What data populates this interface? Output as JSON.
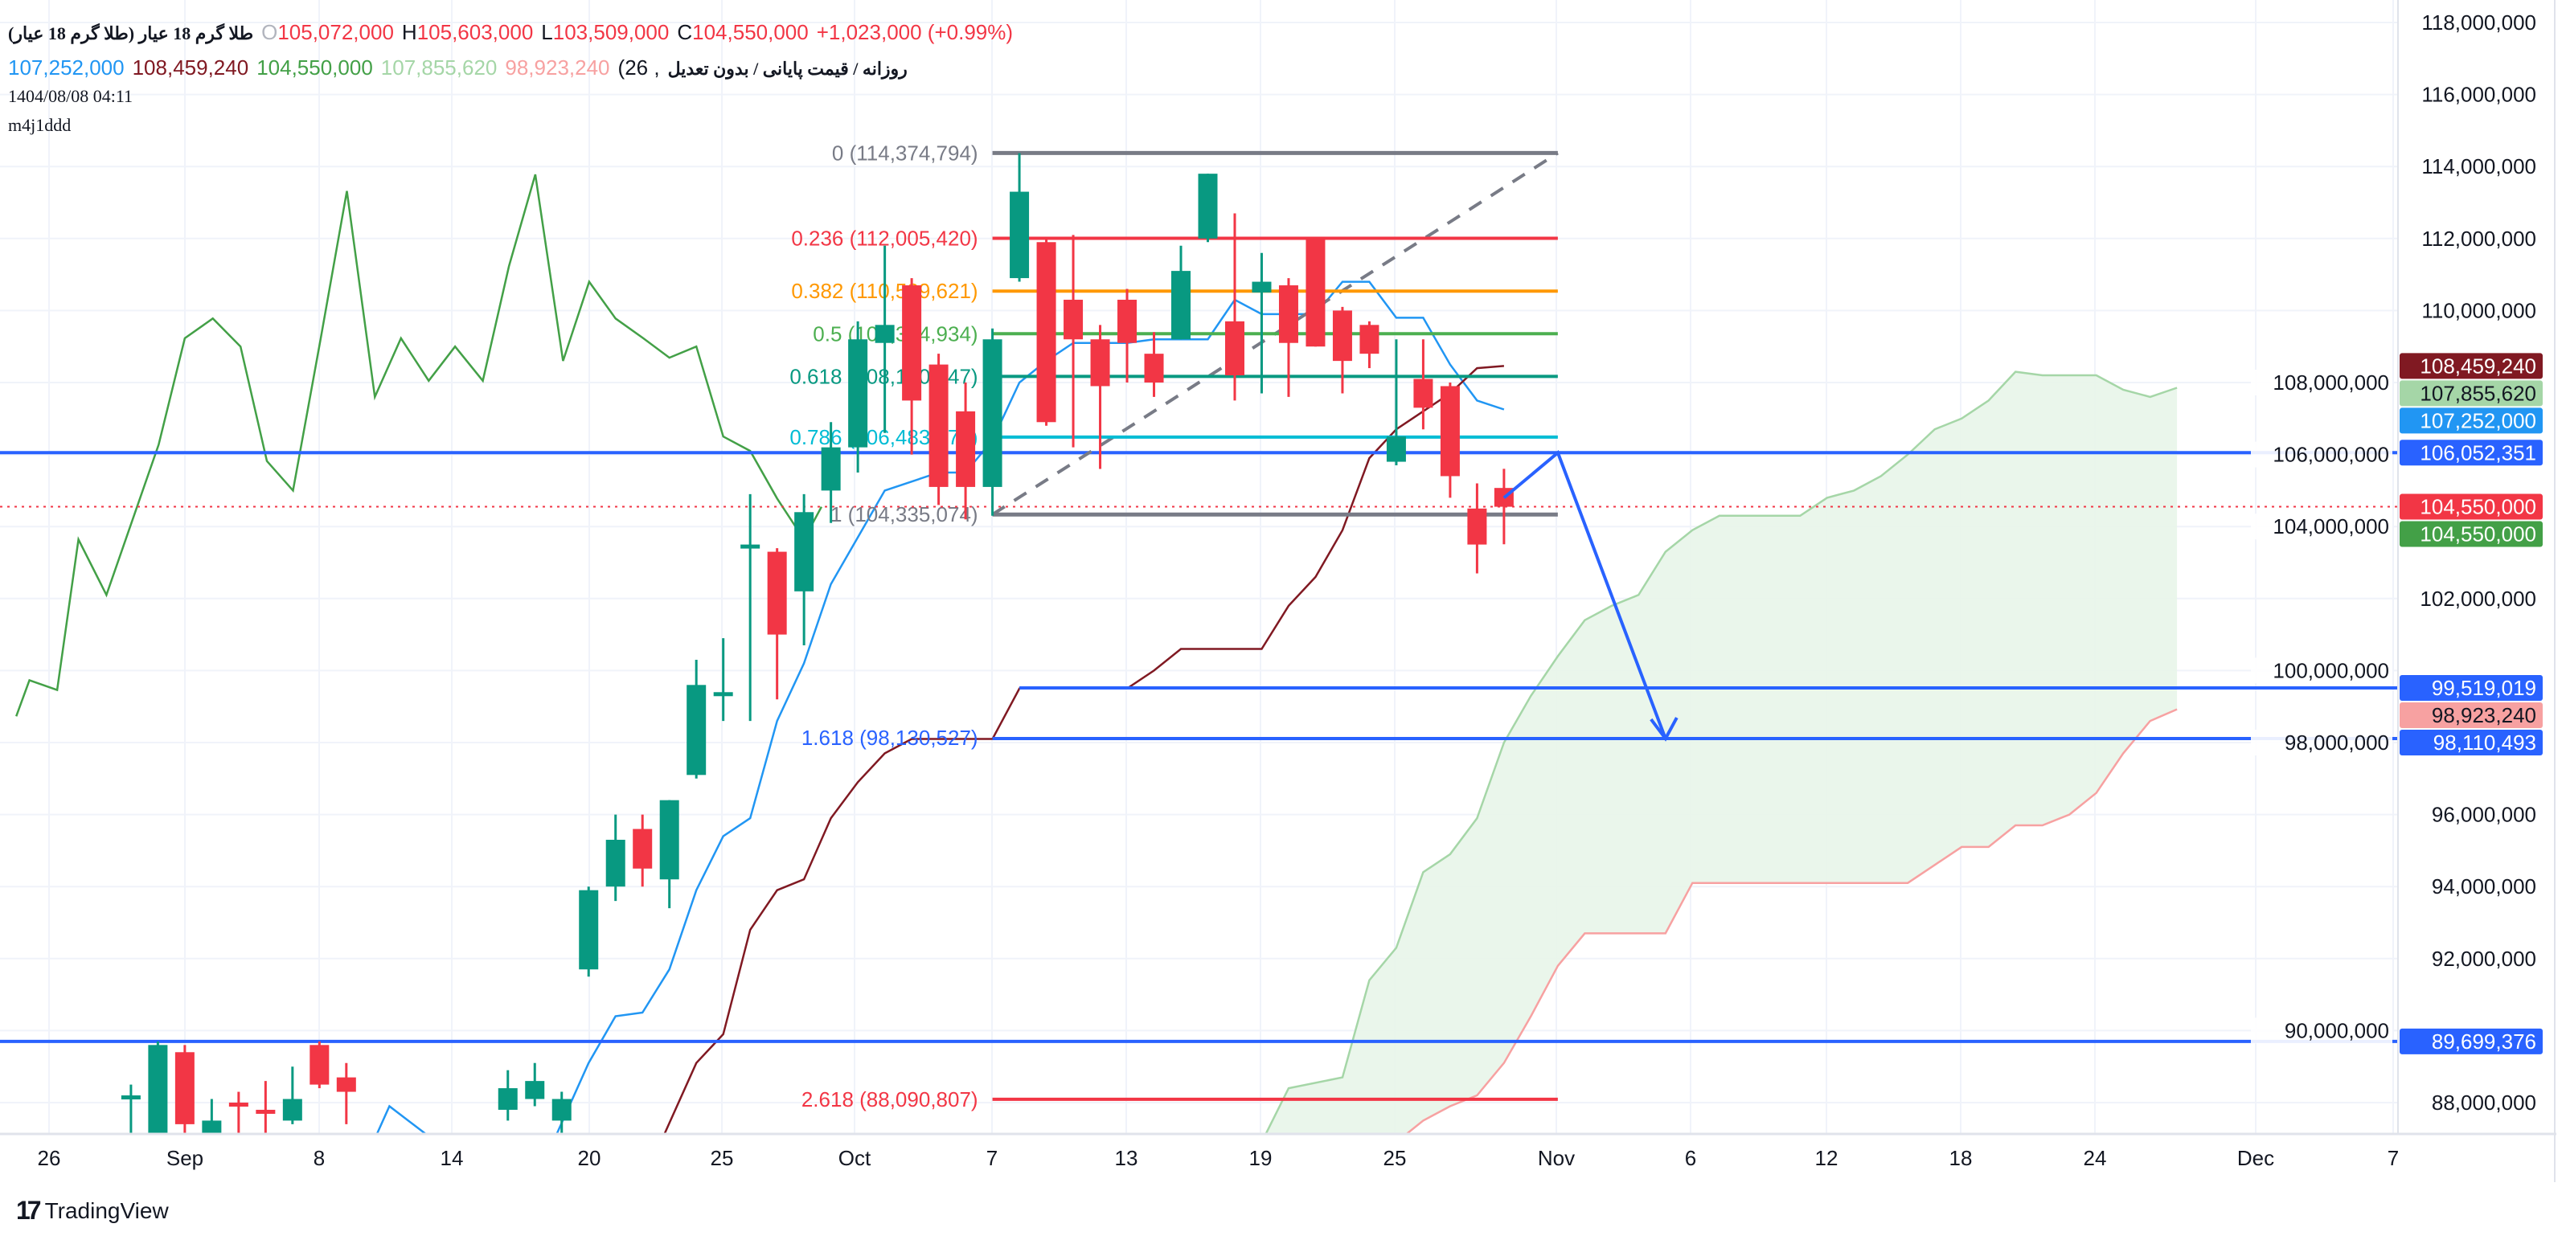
{
  "legend": {
    "symbol_title": "طلا گرم 18 عیار (طلا گرم 18 عیار)",
    "open_label": "O",
    "open": "105,072,000",
    "high_label": "H",
    "high": "105,603,000",
    "low_label": "L",
    "low": "103,509,000",
    "close_label": "C",
    "close": "104,550,000",
    "change": "+1,023,000 (+0.99%)",
    "indicator_title": "روزانه / قیمت پایانی / بدون تعدیل",
    "indicator_params_tail": ", 26)",
    "ind_values": [
      "107,252,000",
      "108,459,240",
      "104,550,000",
      "107,855,620",
      "98,923,240"
    ],
    "date": "1404/08/08 04:11",
    "author": "m4j1ddd"
  },
  "colors": {
    "up": "#089981",
    "down": "#f23645",
    "tenkan": "#2196f3",
    "kijun": "#801922",
    "chikou": "#43a047",
    "senkou_a": "#a5d6a7",
    "senkou_b": "#f7a1a1",
    "cloud_fill": "#e8f5e9",
    "drawn_line": "#2962ff",
    "fib_gray": "#787b86"
  },
  "chart_data": {
    "type": "candlestick",
    "ylim": [
      87.14,
      118.6
    ],
    "y_unit": 1000000,
    "y_ticks": [
      "118,000,000",
      "116,000,000",
      "114,000,000",
      "112,000,000",
      "110,000,000",
      "108,000,000",
      "106,000,000",
      "104,000,000",
      "102,000,000",
      "100,000,000",
      "98,000,000",
      "96,000,000",
      "94,000,000",
      "92,000,000",
      "90,000,000",
      "88,000,000"
    ],
    "y_tick_values": [
      118,
      116,
      114,
      112,
      110,
      108,
      106,
      104,
      102,
      100,
      98,
      96,
      94,
      92,
      90,
      88
    ],
    "x_ticks": [
      "26",
      "Sep",
      "8",
      "14",
      "20",
      "25",
      "Oct",
      "7",
      "13",
      "19",
      "25",
      "Nov",
      "6",
      "12",
      "18",
      "24",
      "Dec",
      "7"
    ],
    "candles": [
      [
        0,
        88.2,
        88.5,
        87.1,
        88.2
      ],
      [
        1,
        87.1,
        89.7,
        87.0,
        89.6
      ],
      [
        2,
        89.4,
        89.6,
        87.0,
        87.4
      ],
      [
        3,
        87.0,
        88.1,
        87.0,
        87.5
      ],
      [
        4,
        88.0,
        88.3,
        87.1,
        87.9
      ],
      [
        5,
        87.8,
        88.6,
        87.0,
        87.7
      ],
      [
        6,
        87.5,
        89.0,
        87.4,
        88.1
      ],
      [
        7,
        89.6,
        89.7,
        88.4,
        88.5
      ],
      [
        8,
        88.7,
        89.1,
        87.4,
        88.3
      ],
      [
        14,
        87.8,
        88.9,
        87.5,
        88.4
      ],
      [
        15,
        88.1,
        89.1,
        87.9,
        88.6
      ],
      [
        16,
        87.5,
        88.3,
        86.0,
        88.1
      ],
      [
        17,
        91.7,
        94.0,
        91.5,
        93.9
      ],
      [
        18,
        94.0,
        96.0,
        93.6,
        95.3
      ],
      [
        19,
        95.6,
        96.0,
        94.0,
        94.5
      ],
      [
        20,
        94.2,
        96.4,
        93.4,
        96.4
      ],
      [
        21,
        97.1,
        100.3,
        97.0,
        99.6
      ],
      [
        22,
        99.3,
        100.9,
        98.6,
        99.4
      ],
      [
        23,
        103.4,
        104.9,
        98.6,
        103.5
      ],
      [
        24,
        103.3,
        103.4,
        99.2,
        101.0
      ],
      [
        25,
        102.2,
        104.9,
        100.7,
        104.4
      ],
      [
        26,
        105.0,
        106.9,
        104.1,
        106.2
      ],
      [
        27,
        106.2,
        109.7,
        105.5,
        109.2
      ],
      [
        28,
        109.1,
        111.8,
        106.6,
        109.6
      ],
      [
        29,
        110.7,
        110.9,
        106.0,
        107.5
      ],
      [
        30,
        108.5,
        108.8,
        104.6,
        105.1
      ],
      [
        31,
        107.2,
        108.0,
        104.2,
        105.1
      ],
      [
        32,
        105.1,
        109.5,
        104.3,
        109.2
      ],
      [
        33,
        110.9,
        114.37,
        110.8,
        113.3
      ],
      [
        34,
        111.9,
        112.0,
        106.8,
        106.9
      ],
      [
        35,
        110.3,
        112.1,
        106.2,
        109.2
      ],
      [
        36,
        109.2,
        109.6,
        105.6,
        107.9
      ],
      [
        37,
        110.3,
        110.6,
        108.0,
        109.1
      ],
      [
        38,
        108.8,
        109.4,
        107.6,
        108.0
      ],
      [
        39,
        109.2,
        111.8,
        109.2,
        111.1
      ],
      [
        40,
        112.0,
        113.8,
        111.9,
        113.8
      ],
      [
        41,
        109.7,
        112.7,
        107.5,
        108.2
      ],
      [
        42,
        110.5,
        111.6,
        107.7,
        110.8
      ],
      [
        43,
        110.7,
        110.9,
        107.6,
        109.1
      ],
      [
        44,
        112.0,
        112.0,
        109.0,
        109.0
      ],
      [
        45,
        110.0,
        110.1,
        107.7,
        108.6
      ],
      [
        46,
        109.6,
        109.7,
        108.4,
        108.8
      ],
      [
        47,
        105.8,
        109.2,
        105.7,
        106.5
      ],
      [
        48,
        108.1,
        109.2,
        106.7,
        107.3
      ],
      [
        49,
        107.9,
        108.0,
        104.8,
        105.4
      ],
      [
        50,
        104.5,
        105.2,
        102.7,
        103.5
      ],
      [
        51,
        105.072,
        105.603,
        103.509,
        104.55
      ]
    ],
    "series": [
      {
        "name": "Tenkan",
        "color_key": "tenkan",
        "points": [
          [
            9,
            86.9
          ],
          [
            9.6,
            87.9
          ],
          [
            11,
            87.1
          ],
          [
            15.8,
            87.1
          ],
          [
            17,
            89.1
          ],
          [
            18,
            90.4
          ],
          [
            19,
            90.5
          ],
          [
            20,
            91.7
          ],
          [
            21,
            93.9
          ],
          [
            22,
            95.4
          ],
          [
            23,
            95.9
          ],
          [
            24,
            98.6
          ],
          [
            25,
            100.2
          ],
          [
            26,
            102.4
          ],
          [
            28,
            105.0
          ],
          [
            30,
            105.5
          ],
          [
            31,
            105.5
          ],
          [
            32,
            106.4
          ],
          [
            33,
            108.0
          ],
          [
            34,
            108.6
          ],
          [
            35,
            109.1
          ],
          [
            37,
            109.1
          ],
          [
            38,
            109.2
          ],
          [
            40,
            109.2
          ],
          [
            41,
            110.3
          ],
          [
            42,
            109.9
          ],
          [
            44,
            109.9
          ],
          [
            45,
            110.8
          ],
          [
            46,
            110.8
          ],
          [
            47,
            109.8
          ],
          [
            48,
            109.8
          ],
          [
            49,
            108.5
          ],
          [
            50,
            107.5
          ],
          [
            51,
            107.252
          ]
        ]
      },
      {
        "name": "Kijun",
        "color_key": "kijun",
        "points": [
          [
            19.8,
            87.1
          ],
          [
            21,
            89.1
          ],
          [
            22,
            89.9
          ],
          [
            23,
            92.8
          ],
          [
            24,
            93.9
          ],
          [
            25,
            94.2
          ],
          [
            26,
            95.9
          ],
          [
            27,
            96.9
          ],
          [
            28,
            97.7
          ],
          [
            29,
            98.1
          ],
          [
            32,
            98.1
          ],
          [
            33,
            99.5
          ],
          [
            37,
            99.5
          ],
          [
            38,
            100.0
          ],
          [
            39,
            100.6
          ],
          [
            42,
            100.6
          ],
          [
            43,
            101.8
          ],
          [
            44,
            102.6
          ],
          [
            45,
            103.9
          ],
          [
            46,
            105.9
          ],
          [
            47,
            106.7
          ],
          [
            48,
            107.2
          ],
          [
            49,
            107.7
          ],
          [
            50,
            108.4
          ],
          [
            51,
            108.459
          ]
        ]
      },
      {
        "name": "Chikou",
        "color_key": "chikou",
        "points": [
          [
            -4.26,
            98.73
          ],
          [
            -3.77,
            99.73
          ],
          [
            -2.74,
            99.46
          ],
          [
            -1.95,
            103.64
          ],
          [
            -0.91,
            102.1
          ],
          [
            1.03,
            106.28
          ],
          [
            2,
            109.23
          ],
          [
            3.04,
            109.78
          ],
          [
            4.07,
            109.0
          ],
          [
            5.05,
            105.82
          ],
          [
            6.02,
            105.0
          ],
          [
            7.05,
            109.23
          ],
          [
            8.02,
            113.32
          ],
          [
            9.06,
            107.6
          ],
          [
            10.03,
            109.23
          ],
          [
            11.06,
            108.05
          ],
          [
            12.04,
            109.0
          ],
          [
            13.07,
            108.05
          ],
          [
            14.04,
            111.23
          ],
          [
            15.02,
            113.78
          ],
          [
            16.05,
            108.6
          ],
          [
            17.02,
            110.8
          ],
          [
            18,
            109.78
          ],
          [
            19.03,
            109.23
          ],
          [
            20,
            108.69
          ],
          [
            21,
            109.0
          ],
          [
            22,
            106.5
          ],
          [
            23,
            106.1
          ],
          [
            24,
            104.78
          ],
          [
            25,
            103.64
          ],
          [
            25.65,
            104.55
          ]
        ]
      },
      {
        "name": "Senkou A",
        "color_key": "senkou_a",
        "points": [
          [
            42,
            86.9
          ],
          [
            43,
            88.4
          ],
          [
            45,
            88.7
          ],
          [
            46,
            91.4
          ],
          [
            47,
            92.3
          ],
          [
            48,
            94.4
          ],
          [
            49,
            94.9
          ],
          [
            50,
            95.9
          ],
          [
            51,
            98.0
          ],
          [
            52,
            99.3
          ],
          [
            53,
            100.4
          ],
          [
            54,
            101.4
          ],
          [
            55,
            101.8
          ],
          [
            56,
            102.1
          ],
          [
            57,
            103.3
          ],
          [
            58,
            103.9
          ],
          [
            59,
            104.3
          ],
          [
            62,
            104.3
          ],
          [
            63,
            104.8
          ],
          [
            64,
            105.0
          ],
          [
            65,
            105.4
          ],
          [
            66,
            106.0
          ],
          [
            67,
            106.7
          ],
          [
            68,
            107.0
          ],
          [
            69,
            107.5
          ],
          [
            70,
            108.3
          ],
          [
            71,
            108.2
          ],
          [
            73,
            108.2
          ],
          [
            74,
            107.8
          ],
          [
            75,
            107.6
          ],
          [
            76,
            107.856
          ]
        ]
      },
      {
        "name": "Senkou B",
        "color_key": "senkou_b",
        "points": [
          [
            47,
            86.9
          ],
          [
            48,
            87.5
          ],
          [
            49,
            87.9
          ],
          [
            50,
            88.2
          ],
          [
            51,
            89.1
          ],
          [
            52,
            90.4
          ],
          [
            53,
            91.8
          ],
          [
            54,
            92.7
          ],
          [
            57,
            92.7
          ],
          [
            58,
            94.1
          ],
          [
            66,
            94.1
          ],
          [
            67,
            94.6
          ],
          [
            68,
            95.1
          ],
          [
            69,
            95.1
          ],
          [
            70,
            95.7
          ],
          [
            71,
            95.7
          ],
          [
            72,
            96.0
          ],
          [
            73,
            96.6
          ],
          [
            74,
            97.7
          ],
          [
            75,
            98.6
          ],
          [
            76,
            98.923
          ]
        ]
      }
    ],
    "fib": {
      "from_bar": 32,
      "to_bar": 53,
      "levels": [
        {
          "label": "0 (114,374,794)",
          "value": 114.374794,
          "color": "#787b86",
          "line": true
        },
        {
          "label": "0.236 (112,005,420)",
          "value": 112.00542,
          "color": "#f23645",
          "line": true
        },
        {
          "label": "0.382 (110,539,621)",
          "value": 110.539621,
          "color": "#ff9800",
          "line": true
        },
        {
          "label": "0.5 (109,354,934)",
          "value": 109.354934,
          "color": "#4caf50",
          "line": true
        },
        {
          "label": "0.618 (108,170,547)",
          "value": 108.170547,
          "color": "#089981",
          "line": true
        },
        {
          "label": "0.786 (106,483,574)",
          "value": 106.483574,
          "color": "#00bcd4",
          "line": true
        },
        {
          "label": "1 (104,335,074)",
          "value": 104.335074,
          "color": "#787b86",
          "line": true
        },
        {
          "label": "1.618 (98,130,527)",
          "value": 98.130527,
          "color": "#2962ff",
          "line": false
        },
        {
          "label": "2.618 (88,090,807)",
          "value": 88.090807,
          "color": "#f23645",
          "line": true
        }
      ],
      "trend_line": [
        [
          32,
          104.335
        ],
        [
          53,
          114.375
        ]
      ]
    },
    "drawn_lines": [
      {
        "label": "106,052,351",
        "value": 106.052351,
        "from_bar": null
      },
      {
        "label": "99,519,019",
        "value": 99.519019,
        "from_bar": 33
      },
      {
        "label": "98,110,493",
        "value": 98.110493,
        "from_bar": 32
      },
      {
        "label": "89,699,376",
        "value": 89.699376,
        "from_bar": null
      }
    ],
    "projection_arrow": [
      [
        51,
        104.8
      ],
      [
        53,
        106.05
      ],
      [
        57,
        98.11
      ]
    ],
    "last_price": 104.55,
    "price_badges": [
      {
        "label": "108,459,240",
        "value": 108.459,
        "bg": "#801922",
        "fg": "#ffffff"
      },
      {
        "label": "107,855,620",
        "value": 107.856,
        "bg": "#a5d6a7",
        "fg": "#131722"
      },
      {
        "label": "107,252,000",
        "value": 107.252,
        "bg": "#2196f3",
        "fg": "#ffffff"
      },
      {
        "label": "106,052,351",
        "value": 106.052,
        "bg": "#2962ff",
        "fg": "#ffffff"
      },
      {
        "label": "104,550,000",
        "value": 104.55,
        "bg": "#f23645",
        "fg": "#ffffff"
      },
      {
        "label": "104,550,000",
        "value": 104.55,
        "bg": "#43a047",
        "fg": "#ffffff"
      },
      {
        "label": "99,519,019",
        "value": 99.519,
        "bg": "#2962ff",
        "fg": "#ffffff"
      },
      {
        "label": "98,923,240",
        "value": 98.923,
        "bg": "#f7a1a1",
        "fg": "#131722"
      },
      {
        "label": "98,110,493",
        "value": 98.11,
        "bg": "#2962ff",
        "fg": "#ffffff"
      },
      {
        "label": "89,699,376",
        "value": 89.699,
        "bg": "#2962ff",
        "fg": "#ffffff"
      }
    ]
  },
  "footer": {
    "brand": "TradingView"
  }
}
